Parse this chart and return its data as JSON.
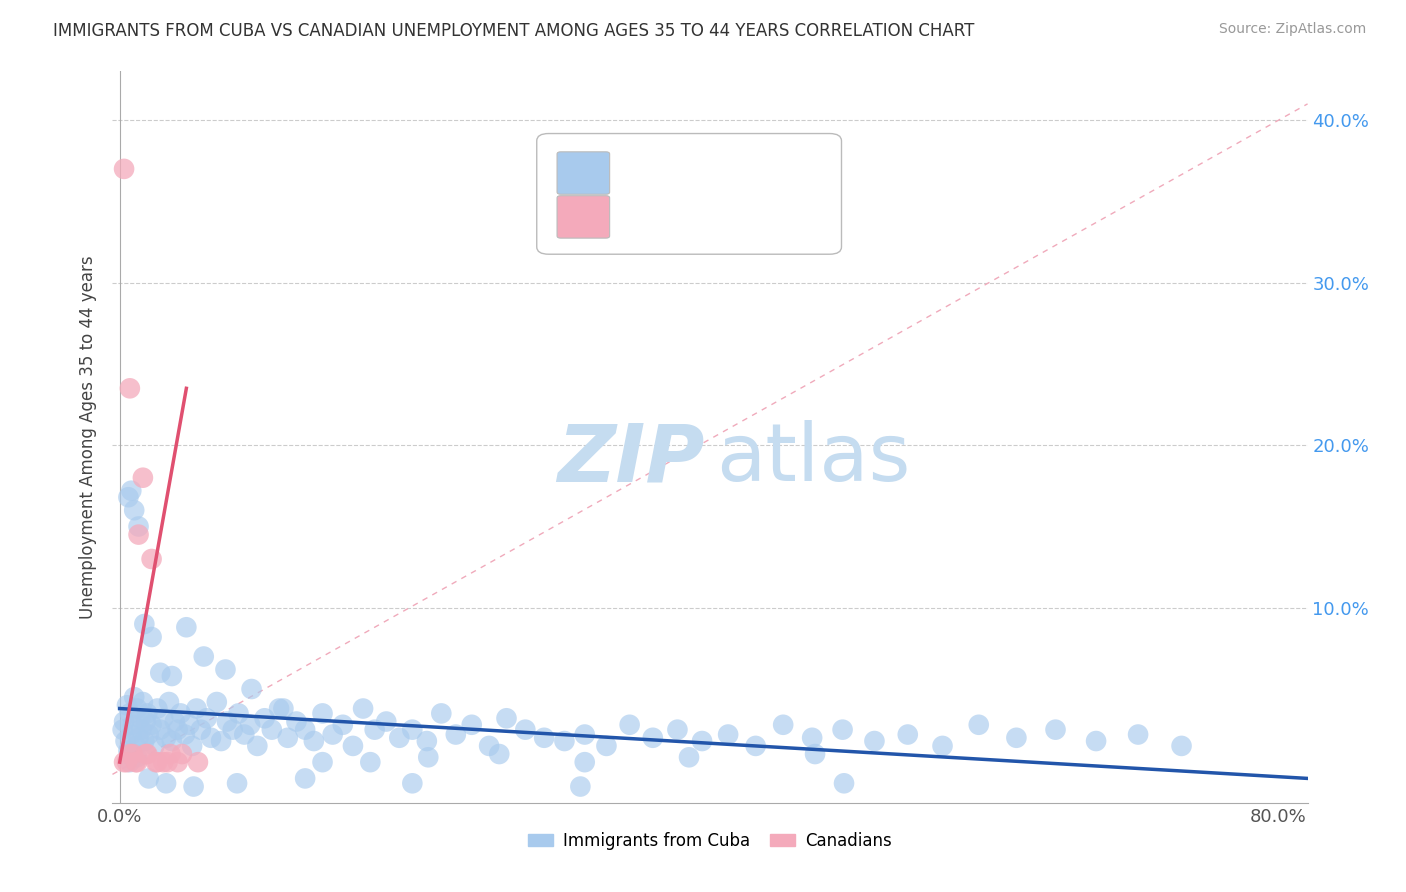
{
  "title": "IMMIGRANTS FROM CUBA VS CANADIAN UNEMPLOYMENT AMONG AGES 35 TO 44 YEARS CORRELATION CHART",
  "source": "Source: ZipAtlas.com",
  "ylabel": "Unemployment Among Ages 35 to 44 years",
  "xlim": [
    -0.005,
    0.82
  ],
  "ylim": [
    -0.02,
    0.43
  ],
  "blue_color": "#A8CAED",
  "pink_color": "#F4AABB",
  "blue_line_color": "#2255AA",
  "pink_line_color": "#E05070",
  "diag_line_color": "#F0AABB",
  "watermark_zip_color": "#C8DDEF",
  "watermark_atlas_color": "#C8DDEF",
  "blue_trend_x": [
    0.0,
    0.82
  ],
  "blue_trend_y": [
    0.038,
    -0.005
  ],
  "pink_trend_x": [
    0.0,
    0.046
  ],
  "pink_trend_y": [
    0.005,
    0.235
  ],
  "blue_x": [
    0.002,
    0.003,
    0.004,
    0.005,
    0.006,
    0.007,
    0.008,
    0.009,
    0.01,
    0.011,
    0.012,
    0.013,
    0.014,
    0.015,
    0.016,
    0.017,
    0.018,
    0.019,
    0.02,
    0.022,
    0.024,
    0.026,
    0.028,
    0.03,
    0.032,
    0.034,
    0.036,
    0.038,
    0.04,
    0.042,
    0.045,
    0.048,
    0.05,
    0.053,
    0.056,
    0.06,
    0.063,
    0.067,
    0.07,
    0.074,
    0.078,
    0.082,
    0.086,
    0.09,
    0.095,
    0.1,
    0.105,
    0.11,
    0.116,
    0.122,
    0.128,
    0.134,
    0.14,
    0.147,
    0.154,
    0.161,
    0.168,
    0.176,
    0.184,
    0.193,
    0.202,
    0.212,
    0.222,
    0.232,
    0.243,
    0.255,
    0.267,
    0.28,
    0.293,
    0.307,
    0.321,
    0.336,
    0.352,
    0.368,
    0.385,
    0.402,
    0.42,
    0.439,
    0.458,
    0.478,
    0.499,
    0.521,
    0.544,
    0.568,
    0.593,
    0.619,
    0.646,
    0.674,
    0.703,
    0.733,
    0.006,
    0.008,
    0.01,
    0.013,
    0.017,
    0.022,
    0.028,
    0.036,
    0.046,
    0.058,
    0.073,
    0.091,
    0.113,
    0.14,
    0.173,
    0.213,
    0.262,
    0.321,
    0.393,
    0.48,
    0.007,
    0.012,
    0.02,
    0.032,
    0.051,
    0.081,
    0.128,
    0.202,
    0.318,
    0.5
  ],
  "blue_y": [
    0.025,
    0.03,
    0.018,
    0.04,
    0.012,
    0.035,
    0.022,
    0.028,
    0.045,
    0.015,
    0.038,
    0.02,
    0.032,
    0.025,
    0.042,
    0.018,
    0.03,
    0.035,
    0.022,
    0.028,
    0.015,
    0.038,
    0.025,
    0.032,
    0.02,
    0.042,
    0.018,
    0.03,
    0.025,
    0.035,
    0.022,
    0.028,
    0.015,
    0.038,
    0.025,
    0.032,
    0.02,
    0.042,
    0.018,
    0.03,
    0.025,
    0.035,
    0.022,
    0.028,
    0.015,
    0.032,
    0.025,
    0.038,
    0.02,
    0.03,
    0.025,
    0.018,
    0.035,
    0.022,
    0.028,
    0.015,
    0.038,
    0.025,
    0.03,
    0.02,
    0.025,
    0.018,
    0.035,
    0.022,
    0.028,
    0.015,
    0.032,
    0.025,
    0.02,
    0.018,
    0.022,
    0.015,
    0.028,
    0.02,
    0.025,
    0.018,
    0.022,
    0.015,
    0.028,
    0.02,
    0.025,
    0.018,
    0.022,
    0.015,
    0.028,
    0.02,
    0.025,
    0.018,
    0.022,
    0.015,
    0.168,
    0.172,
    0.16,
    0.15,
    0.09,
    0.082,
    0.06,
    0.058,
    0.088,
    0.07,
    0.062,
    0.05,
    0.038,
    0.005,
    0.005,
    0.008,
    0.01,
    0.005,
    0.008,
    0.01,
    0.005,
    0.008,
    -0.005,
    -0.008,
    -0.01,
    -0.008,
    -0.005,
    -0.008,
    -0.01,
    -0.008
  ],
  "pink_x": [
    0.003,
    0.005,
    0.007,
    0.009,
    0.011,
    0.013,
    0.016,
    0.019,
    0.022,
    0.026,
    0.03,
    0.035,
    0.04,
    0.003,
    0.007,
    0.012,
    0.018,
    0.025,
    0.033,
    0.043,
    0.054
  ],
  "pink_y": [
    0.37,
    0.005,
    0.235,
    0.01,
    0.005,
    0.145,
    0.18,
    0.01,
    0.13,
    0.005,
    0.005,
    0.01,
    0.005,
    0.005,
    0.01,
    0.005,
    0.01,
    0.005,
    0.005,
    0.01,
    0.005
  ]
}
